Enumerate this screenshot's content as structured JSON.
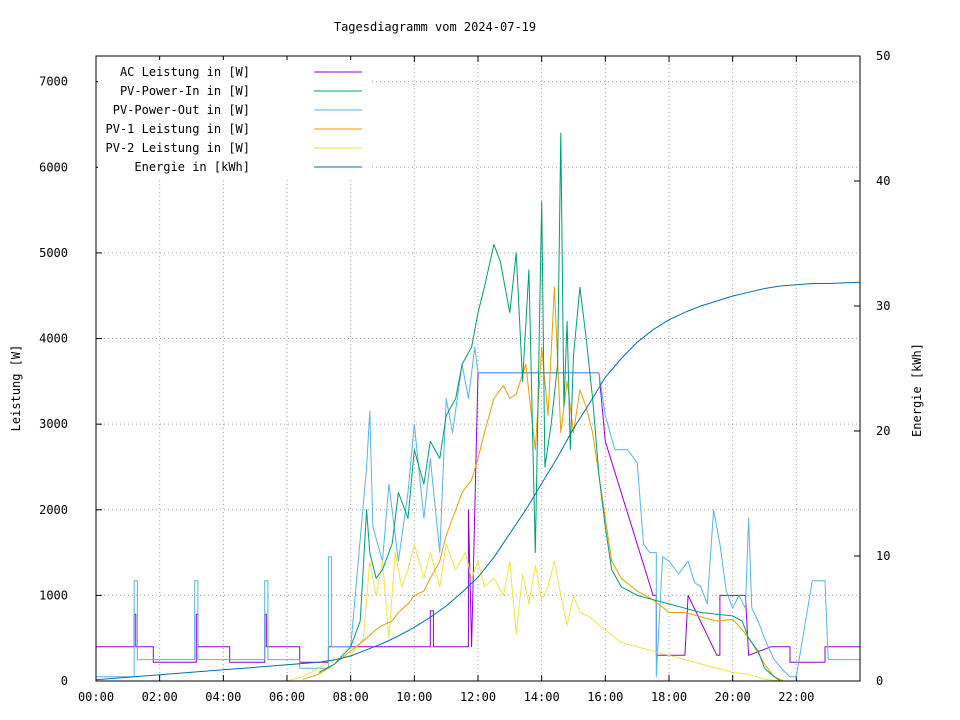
{
  "colors": {
    "ac": "#9400d3",
    "pv_in": "#009e73",
    "pv_out": "#56b4e9",
    "pv1": "#e69f00",
    "pv2": "#f0e442",
    "energy": "#0072b2"
  },
  "chart_data": {
    "type": "line",
    "title": "Tagesdiagramm vom 2024-07-19",
    "xlabel": "",
    "ylabel": "Leistung [W]",
    "y2label": "Energie [kWh]",
    "grid": true,
    "legend_position": "top-left",
    "xlim": [
      0,
      24
    ],
    "ylim": [
      0,
      7300
    ],
    "y2lim": [
      0,
      50
    ],
    "x_ticks": [
      "00:00",
      "02:00",
      "04:00",
      "06:00",
      "08:00",
      "10:00",
      "12:00",
      "14:00",
      "16:00",
      "18:00",
      "20:00",
      "22:00"
    ],
    "y_ticks": [
      "0",
      "1000",
      "2000",
      "3000",
      "4000",
      "5000",
      "6000",
      "7000"
    ],
    "y2_ticks": [
      "0",
      "10",
      "20",
      "30",
      "40",
      "50"
    ],
    "x_unit": "hours",
    "series": [
      {
        "key": "ac",
        "name": "AC Leistung in [W]",
        "axis": "left",
        "x": [
          0,
          1.2,
          1.2,
          1.25,
          1.25,
          1.8,
          1.8,
          3.15,
          3.15,
          3.2,
          3.2,
          4.2,
          4.2,
          5.3,
          5.3,
          5.35,
          5.35,
          6.4,
          6.4,
          7.3,
          7.3,
          8.0,
          9.5,
          10.5,
          10.5,
          10.6,
          10.6,
          11.7,
          11.7,
          11.8,
          12.0,
          13.0,
          14.0,
          15.0,
          15.8,
          16.0,
          17.5,
          17.6,
          17.6,
          18.5,
          18.6,
          18.6,
          19.5,
          19.6,
          19.6,
          20.4,
          20.5,
          20.5,
          21.2,
          21.6,
          21.8,
          21.8,
          22.9,
          22.9,
          24
        ],
        "y": [
          400,
          400,
          780,
          780,
          400,
          400,
          220,
          220,
          780,
          780,
          400,
          400,
          220,
          220,
          780,
          780,
          400,
          400,
          220,
          220,
          400,
          400,
          400,
          400,
          820,
          820,
          400,
          400,
          2000,
          400,
          3600,
          3600,
          3600,
          3600,
          3600,
          2800,
          1000,
          1000,
          300,
          300,
          1000,
          1000,
          300,
          300,
          1000,
          1000,
          300,
          300,
          400,
          400,
          400,
          220,
          220,
          400,
          400
        ]
      },
      {
        "key": "pv_in",
        "name": "PV-Power-In in [W]",
        "axis": "left",
        "x": [
          7.0,
          7.5,
          8.0,
          8.3,
          8.5,
          8.6,
          8.8,
          9.0,
          9.3,
          9.5,
          9.8,
          10.0,
          10.3,
          10.5,
          10.8,
          11.0,
          11.3,
          11.5,
          11.8,
          12.0,
          12.2,
          12.5,
          12.7,
          13.0,
          13.2,
          13.4,
          13.6,
          13.8,
          14.0,
          14.1,
          14.3,
          14.5,
          14.6,
          14.7,
          14.8,
          14.9,
          15.0,
          15.2,
          15.4,
          15.6,
          15.8,
          16.0,
          16.2,
          16.5,
          17.0,
          17.5,
          18.0,
          18.5,
          19.0,
          19.5,
          20.0,
          20.3,
          20.5,
          20.8,
          21.0,
          21.3,
          21.5
        ],
        "y": [
          100,
          200,
          400,
          700,
          2000,
          1500,
          1200,
          1300,
          1600,
          2200,
          1900,
          2700,
          2300,
          2800,
          2600,
          3100,
          3300,
          3700,
          3900,
          4300,
          4600,
          5100,
          4900,
          4300,
          5000,
          3500,
          4800,
          1500,
          5600,
          2500,
          3000,
          3700,
          6400,
          3200,
          4200,
          2700,
          3800,
          4600,
          4000,
          3300,
          2400,
          1800,
          1300,
          1100,
          1000,
          950,
          900,
          850,
          800,
          780,
          760,
          700,
          500,
          350,
          150,
          50,
          0
        ]
      },
      {
        "key": "pv_out",
        "name": "PV-Power-Out in [W]",
        "axis": "left",
        "x": [
          0,
          1.2,
          1.2,
          1.3,
          1.3,
          1.8,
          1.8,
          3.1,
          3.1,
          3.2,
          3.2,
          4.2,
          4.2,
          5.3,
          5.3,
          5.4,
          5.4,
          6.4,
          6.4,
          7.3,
          7.3,
          7.4,
          7.4,
          8.0,
          8.5,
          8.6,
          8.7,
          9.0,
          9.2,
          9.5,
          9.8,
          10.0,
          10.3,
          10.5,
          10.8,
          11.0,
          11.2,
          11.5,
          11.7,
          11.9,
          12.0,
          13.0,
          14.0,
          15.0,
          15.8,
          16.0,
          16.3,
          16.7,
          17.0,
          17.2,
          17.4,
          17.6,
          17.6,
          17.8,
          18.0,
          18.3,
          18.6,
          18.8,
          19.0,
          19.2,
          19.4,
          19.6,
          19.8,
          20.0,
          20.2,
          20.4,
          20.5,
          20.6,
          20.8,
          21.0,
          21.3,
          21.6,
          21.8,
          22.0,
          22.5,
          22.9,
          23.0,
          24
        ],
        "y": [
          50,
          50,
          1170,
          1170,
          250,
          250,
          250,
          250,
          1170,
          1170,
          250,
          250,
          250,
          250,
          1170,
          1170,
          250,
          250,
          150,
          150,
          1450,
          1450,
          400,
          400,
          2500,
          3150,
          1800,
          1400,
          2300,
          1400,
          2200,
          3000,
          1900,
          2600,
          1500,
          3300,
          2900,
          3700,
          3300,
          3900,
          3600,
          3600,
          3600,
          3600,
          3600,
          3100,
          2700,
          2700,
          2550,
          1600,
          1500,
          1500,
          50,
          1450,
          1400,
          1250,
          1400,
          1150,
          1100,
          900,
          2000,
          1600,
          1050,
          850,
          1000,
          850,
          1900,
          850,
          700,
          500,
          250,
          120,
          50,
          50,
          1170,
          1170,
          250,
          250
        ]
      },
      {
        "key": "pv1",
        "name": "PV-1 Leistung in [W]",
        "axis": "left",
        "x": [
          6.5,
          7.0,
          7.5,
          8.0,
          8.5,
          8.8,
          9.0,
          9.3,
          9.5,
          9.8,
          10.0,
          10.3,
          10.5,
          10.8,
          11.0,
          11.3,
          11.5,
          11.8,
          12.0,
          12.2,
          12.5,
          12.8,
          13.0,
          13.2,
          13.5,
          13.8,
          14.0,
          14.2,
          14.4,
          14.6,
          14.8,
          15.0,
          15.2,
          15.4,
          15.6,
          15.8,
          16.0,
          16.2,
          16.5,
          17.0,
          17.5,
          18.0,
          18.5,
          19.0,
          19.5,
          20.0,
          20.3,
          20.6,
          21.0,
          21.3,
          21.6
        ],
        "y": [
          20,
          80,
          200,
          350,
          500,
          600,
          650,
          700,
          800,
          900,
          1000,
          1050,
          1200,
          1400,
          1700,
          2000,
          2200,
          2350,
          2600,
          2900,
          3300,
          3450,
          3300,
          3350,
          3700,
          2700,
          3900,
          3100,
          4600,
          2900,
          3500,
          2900,
          3400,
          3200,
          2900,
          2400,
          1900,
          1400,
          1200,
          1050,
          950,
          800,
          800,
          750,
          700,
          720,
          600,
          450,
          200,
          50,
          0
        ]
      },
      {
        "key": "pv2",
        "name": "PV-2 Leistung in [W]",
        "axis": "left",
        "x": [
          6.0,
          6.5,
          7.0,
          7.5,
          8.0,
          8.4,
          8.6,
          8.8,
          9.0,
          9.2,
          9.4,
          9.6,
          9.8,
          10.0,
          10.3,
          10.5,
          10.8,
          11.0,
          11.3,
          11.6,
          11.8,
          12.0,
          12.2,
          12.5,
          12.8,
          13.0,
          13.2,
          13.4,
          13.6,
          13.8,
          14.0,
          14.2,
          14.4,
          14.6,
          14.8,
          15.0,
          15.2,
          15.5,
          15.8,
          16.0,
          16.5,
          17.0,
          18.0,
          19.0,
          20.0,
          20.5,
          21.0,
          21.5
        ],
        "y": [
          0,
          50,
          150,
          250,
          300,
          500,
          1400,
          1000,
          1400,
          500,
          1500,
          1100,
          1300,
          1600,
          1200,
          1500,
          1100,
          1600,
          1300,
          1500,
          1200,
          1400,
          1100,
          1200,
          1000,
          1400,
          550,
          1250,
          900,
          1350,
          950,
          1100,
          1400,
          1000,
          650,
          1000,
          800,
          750,
          650,
          600,
          450,
          400,
          300,
          200,
          100,
          80,
          20,
          0
        ]
      },
      {
        "key": "energy",
        "name": "Energie in [kWh]",
        "axis": "right",
        "x": [
          0,
          1.0,
          2.0,
          3.0,
          4.0,
          5.0,
          6.0,
          7.0,
          7.5,
          8.0,
          8.5,
          9.0,
          9.5,
          10.0,
          10.5,
          11.0,
          11.5,
          12.0,
          12.5,
          13.0,
          13.5,
          14.0,
          14.5,
          15.0,
          15.5,
          16.0,
          16.5,
          17.0,
          17.5,
          18.0,
          18.5,
          19.0,
          19.5,
          20.0,
          20.5,
          21.0,
          21.5,
          22.0,
          22.5,
          23.0,
          24.0
        ],
        "y": [
          0.1,
          0.3,
          0.5,
          0.7,
          0.9,
          1.1,
          1.3,
          1.5,
          1.7,
          2.0,
          2.5,
          3.0,
          3.6,
          4.3,
          5.1,
          6.0,
          7.1,
          8.3,
          9.9,
          11.8,
          13.7,
          15.8,
          17.9,
          20.2,
          22.2,
          24.3,
          25.8,
          27.1,
          28.1,
          28.9,
          29.5,
          30.0,
          30.4,
          30.8,
          31.1,
          31.4,
          31.6,
          31.7,
          31.8,
          31.8,
          31.9
        ]
      }
    ]
  }
}
